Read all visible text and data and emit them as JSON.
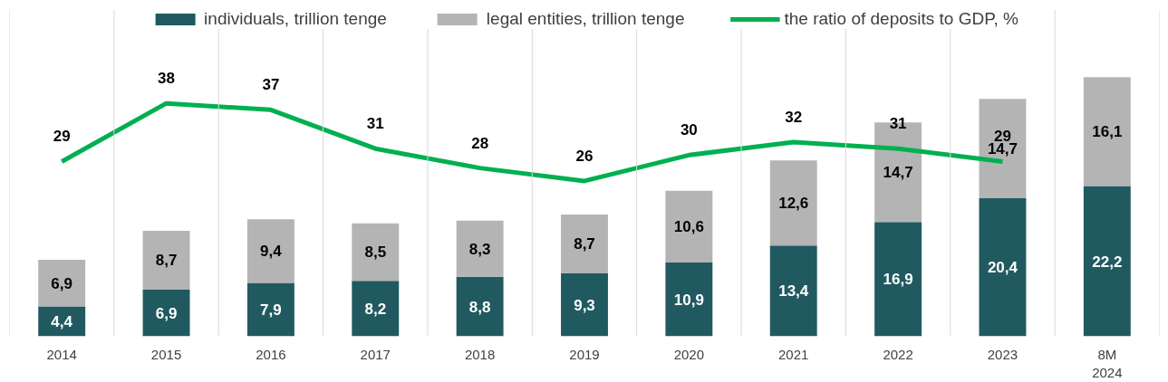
{
  "chart_data": {
    "type": "bar",
    "stacked": true,
    "categories": [
      "2014",
      "2015",
      "2016",
      "2017",
      "2018",
      "2019",
      "2020",
      "2021",
      "2022",
      "2023",
      "8M\n2024"
    ],
    "ylim": [
      0,
      48.3
    ],
    "y2lim": [
      2,
      52.5
    ],
    "grid": "x",
    "legend": "top",
    "series": [
      {
        "name": "individuals, trillion tenge",
        "color": "#205a60",
        "values": [
          4.4,
          6.9,
          7.9,
          8.2,
          8.8,
          9.3,
          10.9,
          13.4,
          16.9,
          20.4,
          22.2
        ],
        "value_labels": [
          "4,4",
          "6,9",
          "7,9",
          "8,2",
          "8,8",
          "9,3",
          "10,9",
          "13,4",
          "16,9",
          "20,4",
          "22,2"
        ]
      },
      {
        "name": "legal entities, trillion tenge",
        "color": "#b4b4b4",
        "values": [
          6.9,
          8.7,
          9.4,
          8.5,
          8.3,
          8.7,
          10.6,
          12.6,
          14.7,
          14.7,
          16.1
        ],
        "value_labels": [
          "6,9",
          "8,7",
          "9,4",
          "8,5",
          "8,3",
          "8,7",
          "10,6",
          "12,6",
          "14,7",
          "14,7",
          "16,1"
        ]
      },
      {
        "name": "the ratio of deposits to GDP, %",
        "type": "line",
        "axis": "y2",
        "color": "#00b050",
        "values": [
          29,
          38,
          37,
          31,
          28,
          26,
          30,
          32,
          31,
          29,
          null
        ],
        "value_labels": [
          "29",
          "38",
          "37",
          "31",
          "28",
          "26",
          "30",
          "32",
          "31",
          "29",
          null
        ]
      }
    ]
  }
}
